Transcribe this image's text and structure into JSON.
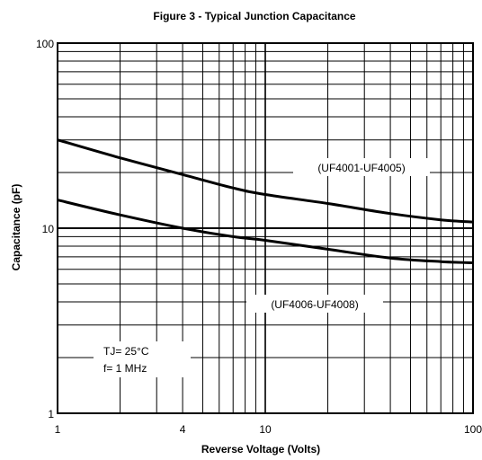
{
  "chart_data": {
    "type": "line",
    "title": "Figure 3 - Typical Junction Capacitance",
    "xlabel": "Reverse Voltage (Volts)",
    "ylabel": "Capacitance (pF)",
    "x_scale": "log",
    "y_scale": "log",
    "xlim": [
      1,
      100
    ],
    "ylim": [
      1,
      100
    ],
    "grid": true,
    "x_ticks": [
      {
        "value": 1,
        "label": "1"
      },
      {
        "value": 4,
        "label": "4"
      },
      {
        "value": 10,
        "label": "10"
      },
      {
        "value": 100,
        "label": "100"
      }
    ],
    "y_ticks": [
      {
        "value": 1,
        "label": "1"
      },
      {
        "value": 10,
        "label": "10"
      },
      {
        "value": 100,
        "label": "100"
      }
    ],
    "series": [
      {
        "name": "(UF4001-UF4005)",
        "x": [
          1,
          2,
          4,
          7,
          10,
          20,
          40,
          70,
          100
        ],
        "y": [
          30,
          24,
          19.5,
          16.5,
          15.2,
          13.6,
          12,
          11.1,
          10.8
        ]
      },
      {
        "name": "(UF4006-UF4008)",
        "x": [
          1,
          2,
          4,
          7,
          10,
          20,
          40,
          70,
          100
        ],
        "y": [
          14.2,
          11.8,
          10,
          9,
          8.6,
          7.7,
          6.9,
          6.6,
          6.5
        ]
      }
    ],
    "annotations": [
      "TJ= 25°C",
      "f= 1 MHz"
    ]
  }
}
